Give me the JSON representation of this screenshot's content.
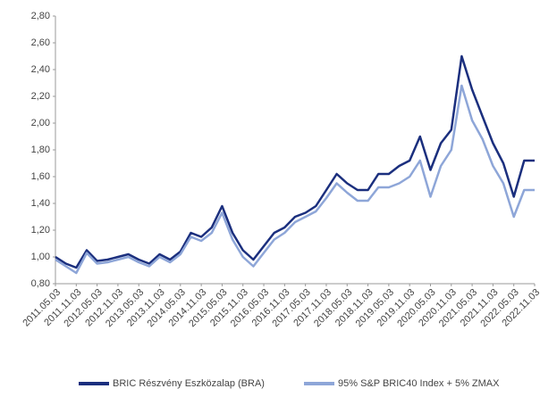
{
  "chart_data": {
    "type": "line",
    "categories": [
      "2011.05.03",
      null,
      "2011.11.03",
      null,
      "2012.05.03",
      null,
      "2012.11.03",
      null,
      "2013.05.03",
      null,
      "2013.11.03",
      null,
      "2014.05.03",
      null,
      "2014.11.03",
      null,
      "2015.05.03",
      null,
      "2015.11.03",
      null,
      "2016.05.03",
      null,
      "2016.11.03",
      null,
      "2017.05.03",
      null,
      "2017.11.03",
      null,
      "2018.05.03",
      null,
      "2018.11.03",
      null,
      "2019.05.03",
      null,
      "2019.11.03",
      null,
      "2020.05.03",
      null,
      "2020.11.03",
      null,
      "2021.05.03",
      null,
      "2021.11.03",
      null,
      "2022.05.03",
      null,
      "2022.11.03"
    ],
    "series": [
      {
        "name": "BRIC Részvény Eszközalap (BRA)",
        "color": "#1b2f7e",
        "values": [
          1.0,
          0.95,
          0.92,
          1.05,
          0.97,
          0.98,
          1.0,
          1.02,
          0.98,
          0.95,
          1.02,
          0.98,
          1.04,
          1.18,
          1.15,
          1.22,
          1.38,
          1.18,
          1.05,
          0.98,
          1.08,
          1.18,
          1.22,
          1.3,
          1.33,
          1.38,
          1.5,
          1.62,
          1.55,
          1.5,
          1.5,
          1.62,
          1.62,
          1.68,
          1.72,
          1.9,
          1.65,
          1.85,
          1.95,
          2.5,
          2.25,
          2.05,
          1.85,
          1.7,
          1.45,
          1.72,
          1.72
        ]
      },
      {
        "name": "95% S&P BRIC40 Index + 5% ZMAX",
        "color": "#8ea6d8",
        "values": [
          0.98,
          0.93,
          0.88,
          1.03,
          0.95,
          0.96,
          0.98,
          1.0,
          0.96,
          0.93,
          1.0,
          0.96,
          1.02,
          1.15,
          1.12,
          1.18,
          1.33,
          1.13,
          1.0,
          0.93,
          1.03,
          1.13,
          1.18,
          1.26,
          1.3,
          1.34,
          1.44,
          1.55,
          1.48,
          1.42,
          1.42,
          1.52,
          1.52,
          1.55,
          1.6,
          1.72,
          1.45,
          1.68,
          1.8,
          2.28,
          2.02,
          1.88,
          1.68,
          1.55,
          1.3,
          1.5,
          1.5
        ]
      }
    ],
    "ylim": [
      0.8,
      2.8
    ],
    "yticks": [
      {
        "value": 0.8,
        "label": "0,80"
      },
      {
        "value": 1.0,
        "label": "1,00"
      },
      {
        "value": 1.2,
        "label": "1,20"
      },
      {
        "value": 1.4,
        "label": "1,40"
      },
      {
        "value": 1.6,
        "label": "1,60"
      },
      {
        "value": 1.8,
        "label": "1,80"
      },
      {
        "value": 2.0,
        "label": "2,00"
      },
      {
        "value": 2.2,
        "label": "2,20"
      },
      {
        "value": 2.4,
        "label": "2,40"
      },
      {
        "value": 2.6,
        "label": "2,60"
      },
      {
        "value": 2.8,
        "label": "2,80"
      }
    ],
    "grid": false,
    "legend": "bottom"
  }
}
